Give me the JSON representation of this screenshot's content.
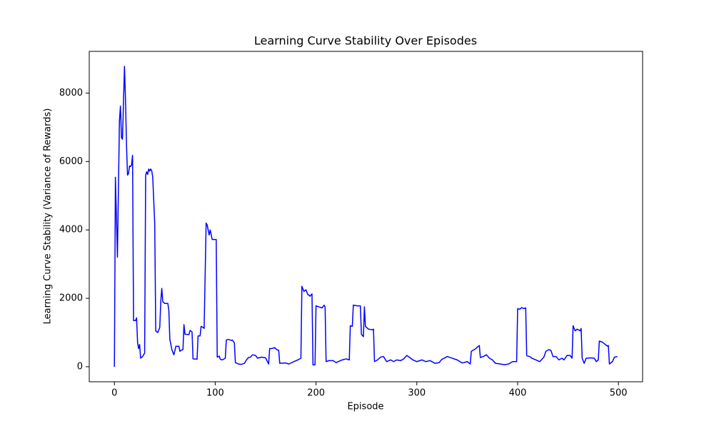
{
  "chart_data": {
    "type": "line",
    "title": "Learning Curve Stability Over Episodes",
    "x_label": "Episode",
    "y_label": "Learning Curve Stability (Variance of Rewards)",
    "color": "#0000ff",
    "x": [
      0,
      1,
      3,
      5,
      6,
      7,
      8,
      10,
      11,
      12,
      13,
      14,
      15,
      16,
      17,
      18,
      19,
      21,
      22,
      23,
      24,
      25,
      26,
      28,
      30,
      31,
      32,
      33,
      34,
      35,
      36,
      37,
      38,
      40,
      41,
      43,
      45,
      46,
      47,
      48,
      50,
      53,
      54,
      55,
      57,
      59,
      61,
      64,
      65,
      66,
      68,
      69,
      70,
      74,
      75,
      77,
      78,
      82,
      83,
      85,
      86,
      88,
      89,
      91,
      92,
      94,
      95,
      97,
      101,
      102,
      104,
      105,
      107,
      110,
      111,
      113,
      116,
      117,
      119,
      120,
      123,
      126,
      129,
      131,
      133,
      135,
      137,
      140,
      142,
      146,
      150,
      153,
      154,
      156,
      159,
      161,
      163,
      164,
      170,
      173,
      178,
      182,
      185,
      186,
      188,
      190,
      192,
      193,
      194,
      196,
      197,
      199,
      200,
      203,
      206,
      208,
      209,
      210,
      213,
      217,
      220,
      222,
      226,
      230,
      233,
      234,
      236,
      237,
      241,
      244,
      245,
      247,
      248,
      249,
      252,
      256,
      257,
      258,
      261,
      264,
      267,
      270,
      274,
      277,
      280,
      284,
      287,
      290,
      293,
      296,
      300,
      305,
      309,
      313,
      318,
      322,
      325,
      328,
      330,
      335,
      340,
      345,
      350,
      353,
      354,
      358,
      361,
      362,
      363,
      366,
      369,
      372,
      375,
      378,
      383,
      387,
      391,
      395,
      399,
      400,
      402,
      404,
      406,
      408,
      409,
      412,
      414,
      418,
      422,
      426,
      428,
      431,
      433,
      435,
      438,
      441,
      444,
      446,
      449,
      452,
      454,
      455,
      457,
      459,
      462,
      463,
      464,
      466,
      468,
      472,
      476,
      478,
      480,
      481,
      484,
      487,
      489,
      490,
      491,
      494,
      496,
      499
    ],
    "values": [
      0,
      5540,
      3200,
      7200,
      7620,
      6700,
      6650,
      8780,
      7800,
      6500,
      5600,
      5650,
      5870,
      5850,
      5900,
      6180,
      1350,
      1350,
      1430,
      700,
      530,
      650,
      250,
      300,
      400,
      5600,
      5700,
      5620,
      5780,
      5720,
      5780,
      5730,
      5550,
      4200,
      1050,
      1000,
      1150,
      1900,
      2290,
      1900,
      1850,
      1850,
      1650,
      800,
      500,
      350,
      600,
      600,
      450,
      480,
      500,
      1230,
      950,
      940,
      1060,
      1020,
      230,
      220,
      900,
      900,
      1180,
      1150,
      1120,
      4200,
      4150,
      3850,
      4000,
      3720,
      3720,
      280,
      310,
      220,
      200,
      250,
      780,
      800,
      770,
      780,
      700,
      120,
      80,
      70,
      100,
      200,
      270,
      280,
      350,
      330,
      250,
      280,
      260,
      80,
      530,
      530,
      560,
      500,
      480,
      100,
      110,
      80,
      150,
      200,
      250,
      2350,
      2200,
      2250,
      2100,
      2100,
      2060,
      2130,
      50,
      60,
      1780,
      1750,
      1720,
      1800,
      1750,
      150,
      180,
      180,
      120,
      150,
      200,
      230,
      200,
      1200,
      1180,
      1800,
      1780,
      1780,
      950,
      880,
      1750,
      1180,
      1100,
      1080,
      1100,
      150,
      200,
      280,
      300,
      150,
      200,
      150,
      200,
      180,
      230,
      330,
      270,
      200,
      150,
      200,
      150,
      180,
      100,
      120,
      220,
      260,
      300,
      250,
      200,
      110,
      150,
      80,
      450,
      520,
      600,
      620,
      270,
      300,
      350,
      250,
      200,
      100,
      80,
      60,
      80,
      150,
      150,
      1700,
      1680,
      1730,
      1700,
      1720,
      320,
      300,
      250,
      200,
      150,
      280,
      450,
      500,
      480,
      300,
      300,
      200,
      250,
      200,
      330,
      330,
      250,
      1200,
      1050,
      1100,
      1050,
      1120,
      250,
      100,
      250,
      260,
      250,
      150,
      200,
      750,
      720,
      650,
      600,
      620,
      80,
      150,
      280,
      300
    ],
    "xlim": [
      -24.95,
      523.95
    ],
    "xticks": [
      0,
      100,
      200,
      300,
      400,
      500
    ],
    "ylim": [
      -439,
      9219
    ],
    "yticks": [
      0,
      2000,
      4000,
      6000,
      8000
    ]
  }
}
